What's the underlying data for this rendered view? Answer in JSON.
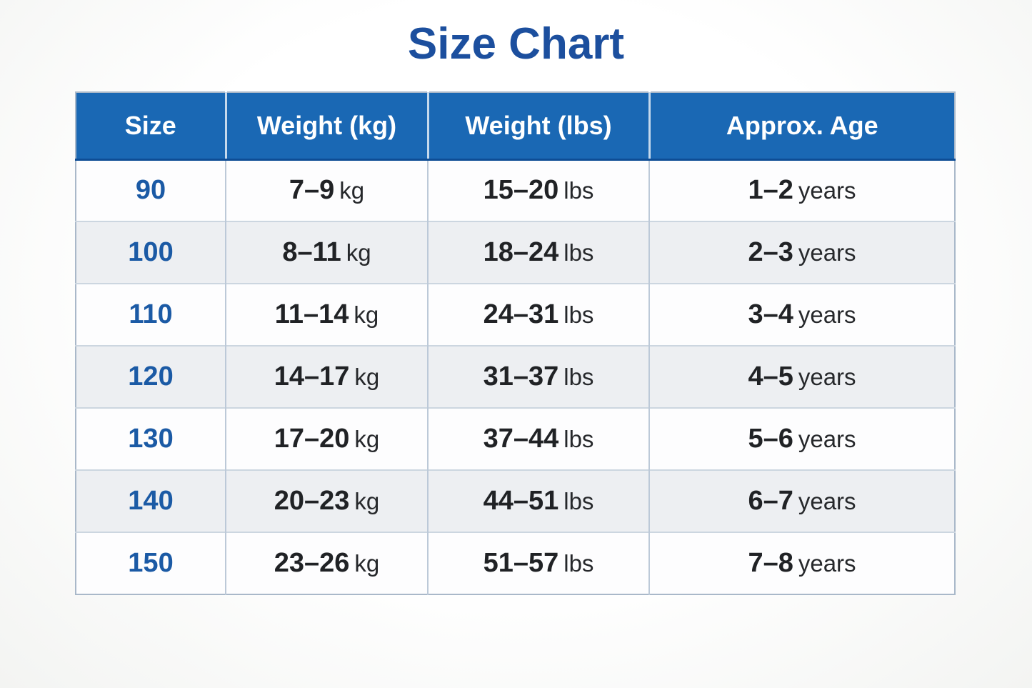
{
  "title": "Size Chart",
  "colors": {
    "header_bg": "#1a68b4",
    "header_text": "#ffffff",
    "title_text": "#1c4f9e",
    "size_value_text": "#1b5aa5",
    "row_bg": "#fdfdfe",
    "row_alt_bg": "#edeff2",
    "body_text": "#202225"
  },
  "chart_data": {
    "type": "table",
    "title": "Size Chart",
    "columns": [
      "Size",
      "Weight (kg)",
      "Weight (lbs)",
      "Approx. Age"
    ],
    "units": {
      "kg": "kg",
      "lbs": "lbs",
      "age": "years"
    },
    "rows": [
      {
        "size": "90",
        "kg": "7–9",
        "lbs": "15–20",
        "age": "1–2"
      },
      {
        "size": "100",
        "kg": "8–11",
        "lbs": "18–24",
        "age": "2–3"
      },
      {
        "size": "110",
        "kg": "11–14",
        "lbs": "24–31",
        "age": "3–4"
      },
      {
        "size": "120",
        "kg": "14–17",
        "lbs": "31–37",
        "age": "4–5"
      },
      {
        "size": "130",
        "kg": "17–20",
        "lbs": "37–44",
        "age": "5–6"
      },
      {
        "size": "140",
        "kg": "20–23",
        "lbs": "44–51",
        "age": "6–7"
      },
      {
        "size": "150",
        "kg": "23–26",
        "lbs": "51–57",
        "age": "7–8"
      }
    ]
  }
}
